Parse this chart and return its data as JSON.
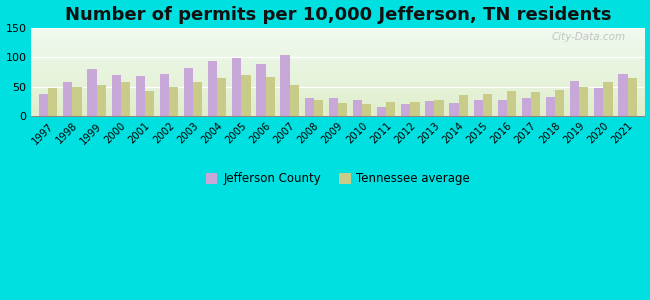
{
  "title": "Number of permits per 10,000 Jefferson, TN residents",
  "years": [
    1997,
    1998,
    1999,
    2000,
    2001,
    2002,
    2003,
    2004,
    2005,
    2006,
    2007,
    2008,
    2009,
    2010,
    2011,
    2012,
    2013,
    2014,
    2015,
    2016,
    2017,
    2018,
    2019,
    2020,
    2021
  ],
  "jefferson": [
    37,
    58,
    80,
    70,
    68,
    72,
    82,
    93,
    98,
    88,
    103,
    30,
    30,
    27,
    15,
    20,
    25,
    22,
    28,
    27,
    30,
    33,
    60,
    48,
    72
  ],
  "tennessee": [
    47,
    50,
    53,
    58,
    43,
    50,
    58,
    65,
    70,
    67,
    52,
    27,
    22,
    20,
    23,
    24,
    27,
    35,
    38,
    42,
    40,
    45,
    50,
    58,
    65
  ],
  "jefferson_color": "#c8a8d8",
  "tennessee_color": "#c8cc88",
  "background_color": "#00e0e0",
  "ylim": [
    0,
    150
  ],
  "yticks": [
    0,
    50,
    100,
    150
  ],
  "bar_width": 0.38,
  "legend_jefferson": "Jefferson County",
  "legend_tennessee": "Tennessee average",
  "title_fontsize": 13,
  "watermark": "City-Data.com"
}
